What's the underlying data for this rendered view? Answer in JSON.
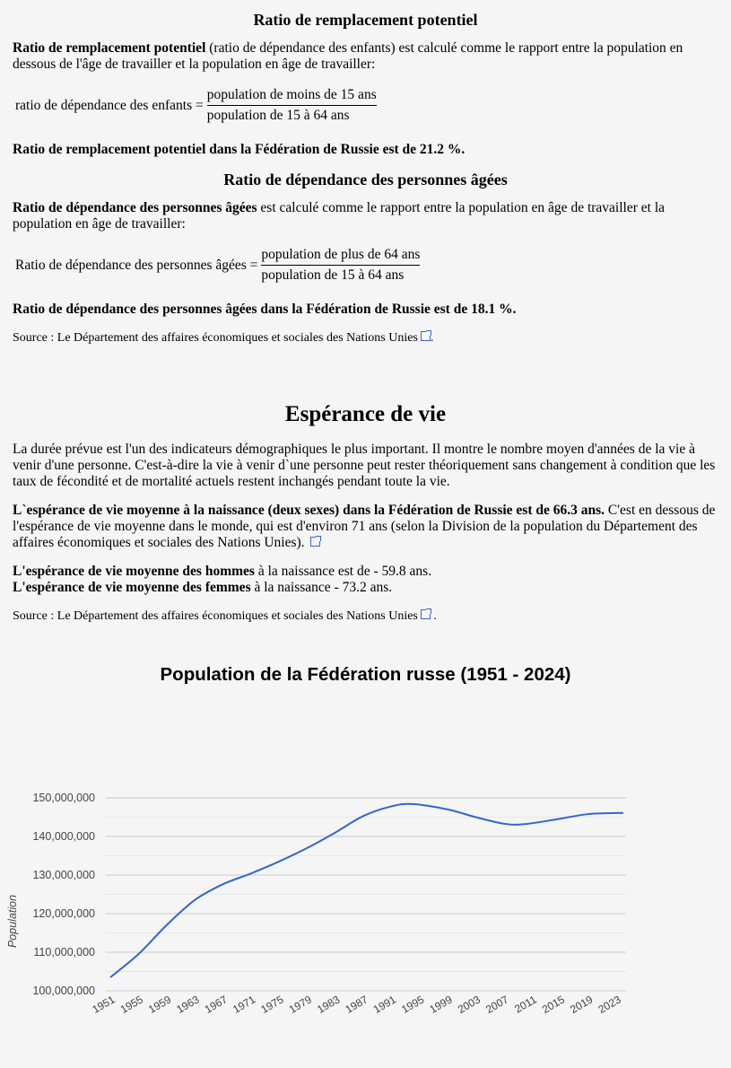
{
  "s1": {
    "title": "Ratio de remplacement potentiel",
    "p_bold": "Ratio de remplacement potentiel",
    "p_rest": " (ratio de dépendance des enfants) est calculé comme le rapport entre la population en dessous de l'âge de travailler et la population en âge de travailler:",
    "f_label": "ratio de dépendance des enfants =",
    "f_num": "population de moins de 15 ans",
    "f_den": "population de 15 à 64 ans",
    "result": "Ratio de remplacement potentiel dans la Fédération de Russie est de 21.2 %."
  },
  "s2": {
    "title": "Ratio de dépendance des personnes âgées",
    "p_bold": "Ratio de dépendance des personnes âgées",
    "p_rest": " est calculé comme le rapport entre la population en âge de travailler et la population en âge de travailler:",
    "f_label": "Ratio de dépendance des personnes âgées =",
    "f_num": "population de plus de 64 ans",
    "f_den": "population de 15 à 64 ans",
    "result": "Ratio de dépendance des personnes âgées dans la Fédération de Russie est de 18.1 %.",
    "source": "Source : Le Département des affaires économiques et sociales des Nations Unies"
  },
  "s3": {
    "title": "Espérance de vie",
    "p1": "La durée prévue est l'un des indicateurs démographiques le plus important. Il montre le nombre moyen d'années de la vie à venir d'une personne. C'est-à-dire la vie à venir d`une personne peut rester théoriquement sans changement à condition que les taux de fécondité et de mortalité actuels restent inchangés pendant toute la vie.",
    "p2_bold": "L`espérance de vie moyenne à la naissance (deux sexes) dans la Fédération de Russie est de 66.3 ans.",
    "p2_rest": " C'est en dessous de l'espérance de vie moyenne dans le monde, qui est d'environ 71 ans (selon la Division de la population du Département des affaires économiques et sociales des Nations Unies).",
    "men_bold": "L'espérance de vie moyenne des hommes",
    "men_rest": " à la naissance est de - 59.8 ans.",
    "women_bold": "L'espérance de vie moyenne des femmes",
    "women_rest": " à la naissance - 73.2 ans.",
    "source": "Source : Le Département des affaires économiques et sociales des Nations Unies",
    "source_end": " ."
  },
  "chart_data": {
    "type": "line",
    "title": "Population de la Fédération russe (1951 - 2024)",
    "ylabel": "Population",
    "xlabel": "",
    "xlim": [
      1951,
      2024
    ],
    "ylim": [
      100000000,
      150000000
    ],
    "grid": true,
    "color": "#3366cc",
    "yticks": [
      "100,000,000",
      "110,000,000",
      "120,000,000",
      "130,000,000",
      "140,000,000",
      "150,000,000"
    ],
    "xticks": [
      "1951",
      "1955",
      "1959",
      "1963",
      "1967",
      "1971",
      "1975",
      "1979",
      "1983",
      "1987",
      "1991",
      "1995",
      "1999",
      "2003",
      "2007",
      "2011",
      "2015",
      "2019",
      "2023"
    ],
    "x": [
      1951,
      1955,
      1959,
      1963,
      1967,
      1971,
      1975,
      1979,
      1983,
      1987,
      1991,
      1994,
      1999,
      2003,
      2007,
      2010,
      2015,
      2019,
      2024
    ],
    "y": [
      103500000,
      109500000,
      117000000,
      123500000,
      127600000,
      130400000,
      133500000,
      137000000,
      141000000,
      145300000,
      147800000,
      148400000,
      147000000,
      145000000,
      143300000,
      143200000,
      144600000,
      145800000,
      146100000
    ]
  }
}
